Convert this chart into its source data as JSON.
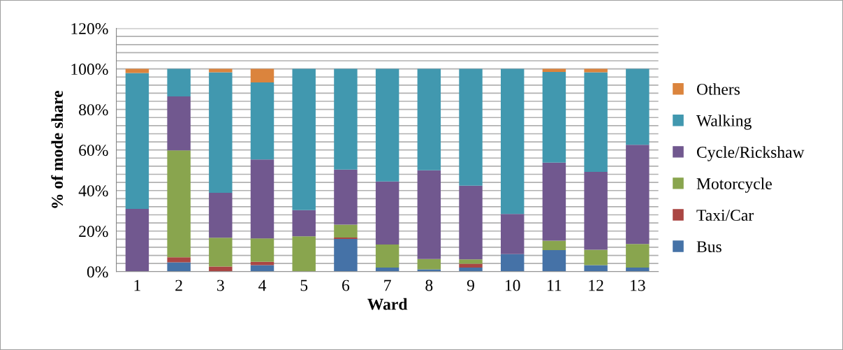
{
  "chart_data": {
    "type": "bar",
    "stacked": true,
    "xlabel": "Ward",
    "ylabel": "% of mode share",
    "categories": [
      "1",
      "2",
      "3",
      "4",
      "5",
      "6",
      "7",
      "8",
      "9",
      "10",
      "11",
      "12",
      "13"
    ],
    "series": [
      {
        "name": "Bus",
        "color": "#4572a7",
        "values": [
          0,
          4.6,
          0,
          3.2,
          0,
          16.1,
          2.0,
          1.1,
          2.0,
          8.6,
          10.6,
          3.2,
          2.0
        ]
      },
      {
        "name": "Taxi/Car",
        "color": "#aa4643",
        "values": [
          0,
          2.5,
          2.5,
          1.6,
          0,
          0.7,
          0,
          0,
          1.9,
          0,
          0,
          0,
          0
        ]
      },
      {
        "name": "Motorcycle",
        "color": "#89a54e",
        "values": [
          0,
          52.7,
          14.2,
          11.6,
          17.4,
          6.4,
          11.4,
          5.1,
          2.1,
          0,
          4.7,
          7.6,
          11.6
        ]
      },
      {
        "name": "Cycle/Rickshaw",
        "color": "#71588f",
        "values": [
          30.9,
          26.6,
          22.2,
          38.9,
          12.9,
          27.1,
          31.1,
          43.8,
          36.4,
          19.8,
          38.5,
          38.4,
          49.0
        ]
      },
      {
        "name": "Walking",
        "color": "#4198af",
        "values": [
          67.1,
          13.6,
          59.4,
          38.0,
          69.7,
          49.7,
          55.5,
          50.0,
          57.6,
          71.6,
          44.7,
          49.1,
          37.4
        ]
      },
      {
        "name": "Others",
        "color": "#db843d",
        "values": [
          2.0,
          0,
          1.7,
          6.7,
          0,
          0,
          0,
          0,
          0,
          0,
          1.5,
          1.7,
          0
        ]
      }
    ],
    "ylim": [
      0,
      120
    ],
    "yticks": [
      {
        "value": 0,
        "label": "0%"
      },
      {
        "value": 4,
        "label": null
      },
      {
        "value": 8,
        "label": null
      },
      {
        "value": 12,
        "label": null
      },
      {
        "value": 16,
        "label": null
      },
      {
        "value": 20,
        "label": "20%"
      },
      {
        "value": 24,
        "label": null
      },
      {
        "value": 28,
        "label": null
      },
      {
        "value": 32,
        "label": null
      },
      {
        "value": 36,
        "label": null
      },
      {
        "value": 40,
        "label": "40%"
      },
      {
        "value": 44,
        "label": null
      },
      {
        "value": 48,
        "label": null
      },
      {
        "value": 52,
        "label": null
      },
      {
        "value": 56,
        "label": null
      },
      {
        "value": 60,
        "label": "60%"
      },
      {
        "value": 64,
        "label": null
      },
      {
        "value": 68,
        "label": null
      },
      {
        "value": 72,
        "label": null
      },
      {
        "value": 76,
        "label": null
      },
      {
        "value": 80,
        "label": "80%"
      },
      {
        "value": 84,
        "label": null
      },
      {
        "value": 88,
        "label": null
      },
      {
        "value": 92,
        "label": null
      },
      {
        "value": 96,
        "label": null
      },
      {
        "value": 100,
        "label": "100%"
      },
      {
        "value": 104,
        "label": null
      },
      {
        "value": 108,
        "label": null
      },
      {
        "value": 112,
        "label": null
      },
      {
        "value": 116,
        "label": null
      },
      {
        "value": 120,
        "label": "120%"
      }
    ],
    "grid": "y",
    "legend": "right"
  }
}
